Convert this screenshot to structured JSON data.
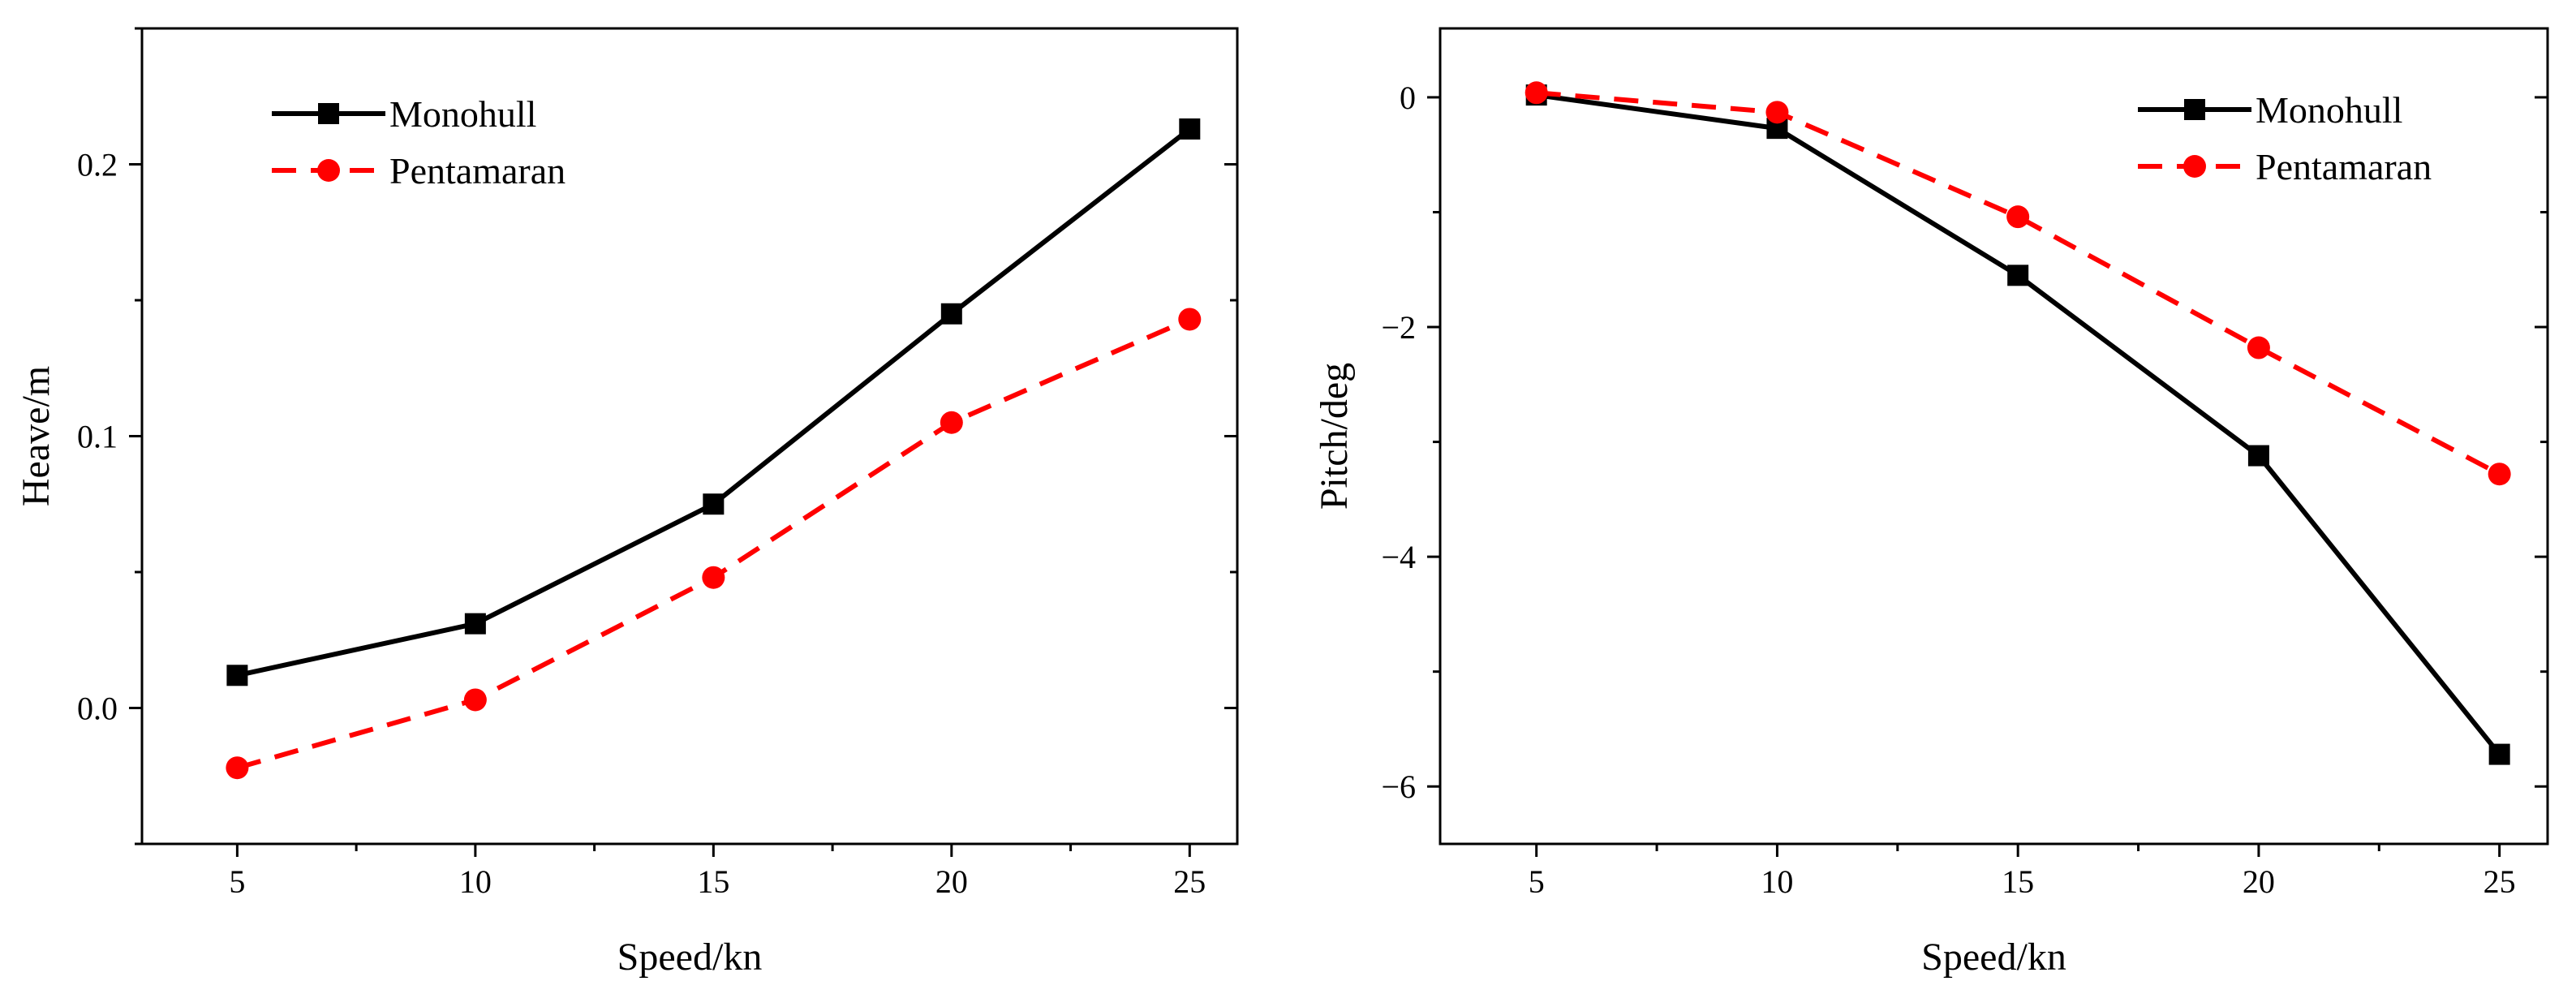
{
  "colors": {
    "monohull": "#000000",
    "pentamaran": "#ff0000",
    "axes": "#000000",
    "background": "#ffffff"
  },
  "chart_data": [
    {
      "type": "line",
      "xlabel": "Speed/kn",
      "ylabel": "Heave/m",
      "xlim": [
        3,
        26
      ],
      "ylim": [
        -0.05,
        0.25
      ],
      "xticks": [
        5,
        10,
        15,
        20,
        25
      ],
      "xtick_labels": [
        "5",
        "10",
        "15",
        "20",
        "25"
      ],
      "xminor": [
        7.5,
        12.5,
        17.5,
        22.5
      ],
      "yticks": [
        0.0,
        0.1,
        0.2
      ],
      "ytick_labels": [
        "0.0",
        "0.1",
        "0.2"
      ],
      "yminor": [
        -0.05,
        0.05,
        0.15,
        0.25
      ],
      "legend_position": "top-left",
      "grid": false,
      "x": [
        5,
        10,
        15,
        20,
        25
      ],
      "series": [
        {
          "name": "Monohull",
          "values": [
            0.012,
            0.031,
            0.075,
            0.145,
            0.213
          ],
          "style": "solid",
          "marker": "square",
          "color_key": "monohull"
        },
        {
          "name": "Pentamaran",
          "values": [
            -0.022,
            0.003,
            0.048,
            0.105,
            0.143
          ],
          "style": "dashed",
          "marker": "circle",
          "color_key": "pentamaran"
        }
      ]
    },
    {
      "type": "line",
      "xlabel": "Speed/kn",
      "ylabel": "Pitch/deg",
      "xlim": [
        3,
        26
      ],
      "ylim": [
        -6.5,
        0.6
      ],
      "xticks": [
        5,
        10,
        15,
        20,
        25
      ],
      "xtick_labels": [
        "5",
        "10",
        "15",
        "20",
        "25"
      ],
      "xminor": [
        7.5,
        12.5,
        17.5,
        22.5
      ],
      "yticks": [
        0,
        -2,
        -4,
        -6
      ],
      "ytick_labels": [
        "0",
        "−2",
        "−4",
        "−6"
      ],
      "yminor": [
        -1,
        -3,
        -5
      ],
      "legend_position": "top-right",
      "grid": false,
      "x": [
        5,
        10,
        15,
        20,
        25
      ],
      "series": [
        {
          "name": "Monohull",
          "values": [
            0.02,
            -0.27,
            -1.55,
            -3.12,
            -5.72
          ],
          "style": "solid",
          "marker": "square",
          "color_key": "monohull"
        },
        {
          "name": "Pentamaran",
          "values": [
            0.04,
            -0.13,
            -1.04,
            -2.18,
            -3.28
          ],
          "style": "dashed",
          "marker": "circle",
          "color_key": "pentamaran"
        }
      ]
    }
  ]
}
